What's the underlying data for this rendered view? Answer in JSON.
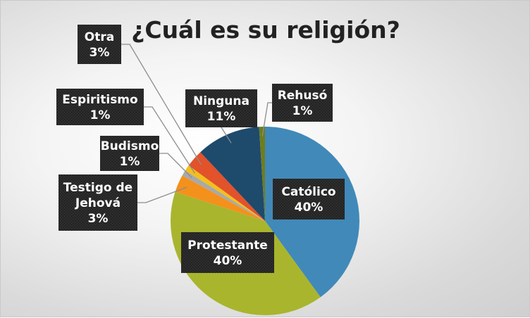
{
  "chart_data": {
    "type": "pie",
    "title": "¿Cuál es su religión?",
    "start_angle_deg": 0,
    "direction": "clockwise",
    "slices": [
      {
        "label": "Católico",
        "value": 40,
        "value_label": "40%",
        "color": "#4189b8"
      },
      {
        "label": "Protestante",
        "value": 40,
        "value_label": "40%",
        "color": "#a9b52d"
      },
      {
        "label": "Testigo de Jehová",
        "value": 3,
        "value_label": "3%",
        "color": "#f3911c"
      },
      {
        "label": "Budismo",
        "value": 1,
        "value_label": "1%",
        "color": "#a9a9a9"
      },
      {
        "label": "Espiritismo",
        "value": 1,
        "value_label": "1%",
        "color": "#f2c01b"
      },
      {
        "label": "Otra",
        "value": 3,
        "value_label": "3%",
        "color": "#e2522b"
      },
      {
        "label": "Ninguna",
        "value": 11,
        "value_label": "11%",
        "color": "#1e4a6c"
      },
      {
        "label": "Rehusó",
        "value": 1,
        "value_label": "1%",
        "color": "#6e7d1d"
      }
    ],
    "label_style": {
      "box_fill": "#262626",
      "text_color": "#ffffff",
      "leader_color": "#8c8c8c"
    },
    "legend": "none"
  }
}
